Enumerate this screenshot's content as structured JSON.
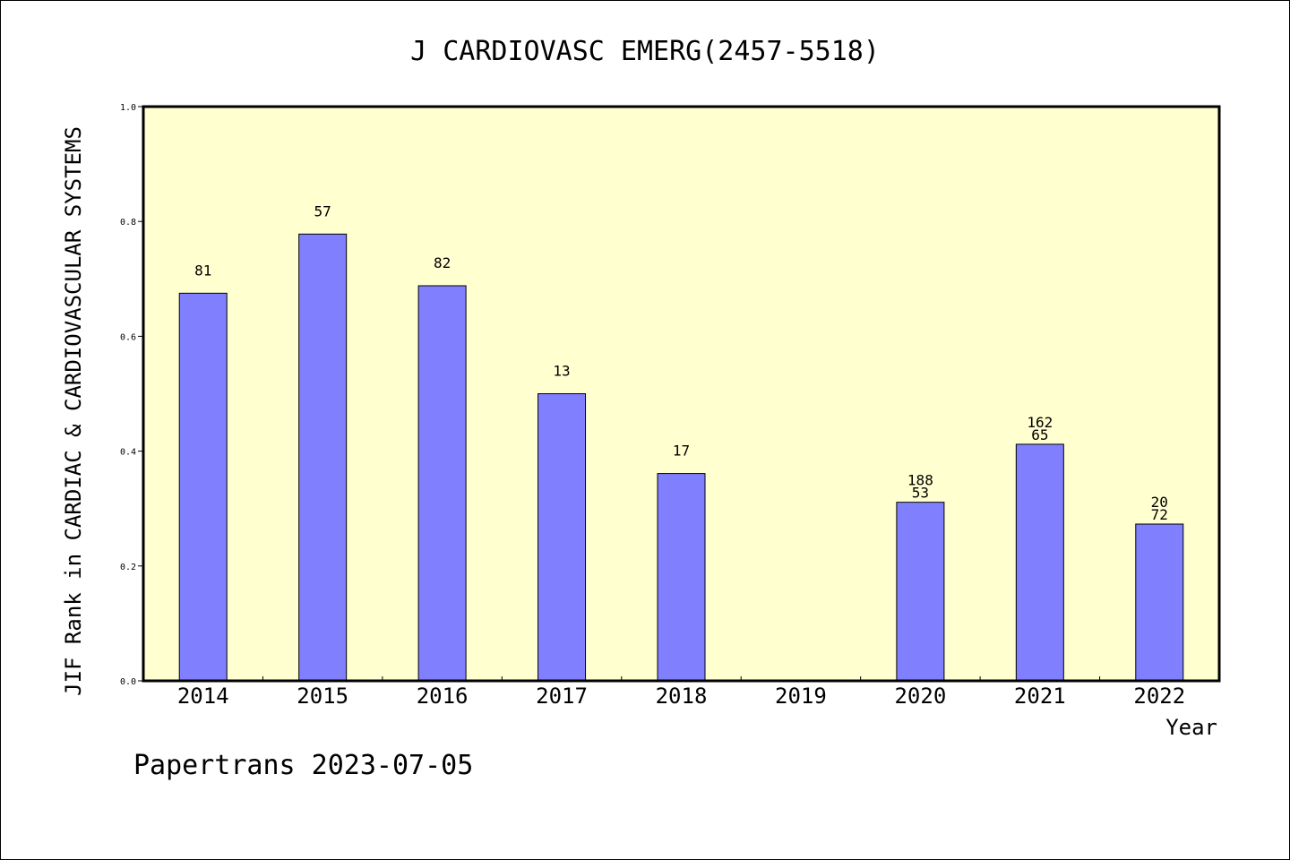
{
  "chart_data": {
    "type": "bar",
    "title": "J CARDIOVASC EMERG(2457-5518)",
    "xlabel": "Year",
    "ylabel": "JIF Rank in CARDIAC & CARDIOVASCULAR SYSTEMS",
    "ylim": [
      0,
      1.0
    ],
    "yticks": [
      "0.0",
      "0.2",
      "0.4",
      "0.6",
      "0.8",
      "1.0"
    ],
    "categories": [
      "2014",
      "2015",
      "2016",
      "2017",
      "2018",
      "2019",
      "2020",
      "2021",
      "2022"
    ],
    "values": [
      0.675,
      0.778,
      0.688,
      0.5,
      0.361,
      null,
      0.311,
      0.412,
      0.273
    ],
    "bar_labels": [
      [
        "81"
      ],
      [
        "57"
      ],
      [
        "82"
      ],
      [
        "13"
      ],
      [
        "17"
      ],
      [],
      [
        "188",
        "53"
      ],
      [
        "162",
        "65"
      ],
      [
        "20",
        "72"
      ]
    ],
    "colors": {
      "plot_bg": "#ffffd0",
      "bar": "#8080ff",
      "axis": "#000000"
    },
    "grid": false
  },
  "footer": {
    "text": "Papertrans 2023-07-05"
  }
}
